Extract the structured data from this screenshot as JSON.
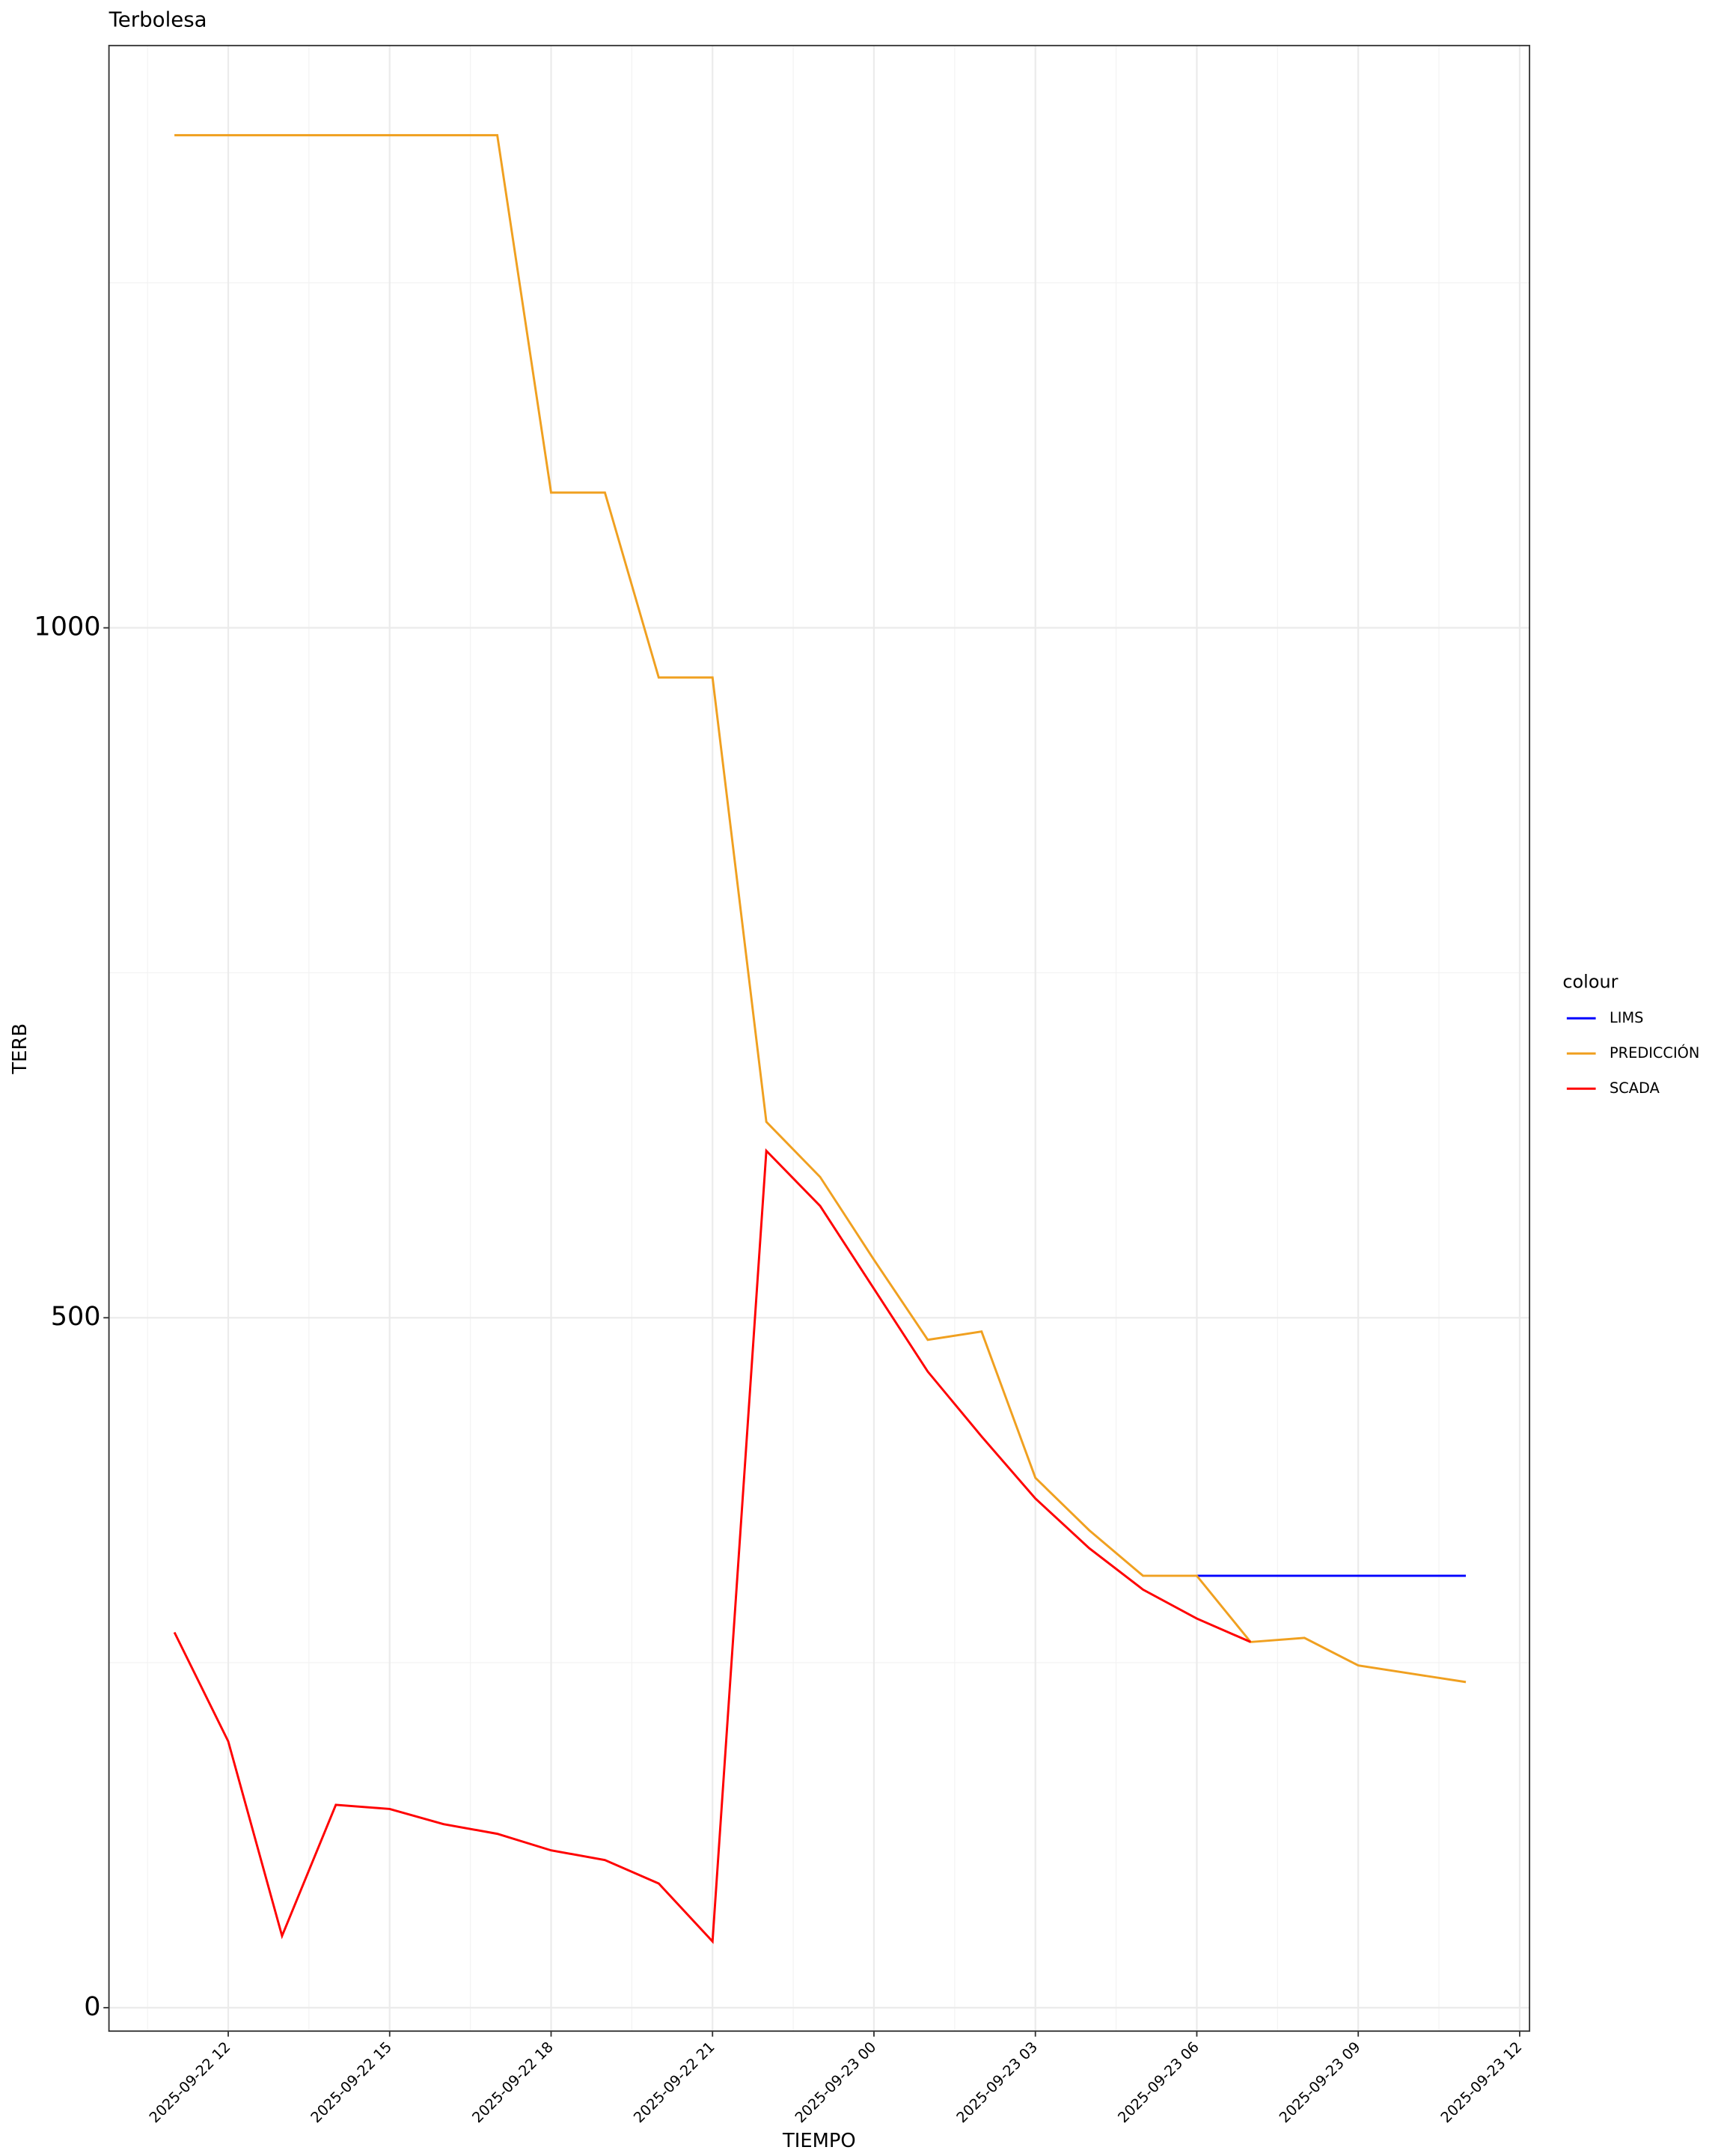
{
  "chart_data": {
    "type": "line",
    "title": "Terbolesa",
    "x_label": "TIEMPO",
    "y_label": "TERB",
    "x": [
      "2025-09-22 11",
      "2025-09-22 12",
      "2025-09-22 13",
      "2025-09-22 14",
      "2025-09-22 15",
      "2025-09-22 16",
      "2025-09-22 17",
      "2025-09-22 18",
      "2025-09-22 19",
      "2025-09-22 20",
      "2025-09-22 21",
      "2025-09-22 22",
      "2025-09-22 23",
      "2025-09-23 00",
      "2025-09-23 01",
      "2025-09-23 02",
      "2025-09-23 03",
      "2025-09-23 04",
      "2025-09-23 05",
      "2025-09-23 06",
      "2025-09-23 07",
      "2025-09-23 08",
      "2025-09-23 09",
      "2025-09-23 10",
      "2025-09-23 11"
    ],
    "series": [
      {
        "name": "LIMS",
        "color": "#0000ff",
        "values": [
          null,
          null,
          null,
          null,
          null,
          null,
          null,
          null,
          null,
          null,
          null,
          null,
          null,
          null,
          null,
          null,
          null,
          null,
          null,
          313,
          313,
          313,
          313,
          313,
          313
        ]
      },
      {
        "name": "PREDICCIÓN",
        "color": "#f0a020",
        "values": [
          1357,
          1357,
          1357,
          1357,
          1357,
          1357,
          1357,
          1098,
          1098,
          964,
          964,
          642,
          602,
          542,
          484,
          490,
          384,
          346,
          313,
          313,
          265,
          268,
          248,
          242,
          236
        ]
      },
      {
        "name": "SCADA",
        "color": "#ff0000",
        "values": [
          272,
          193,
          52,
          147,
          144,
          133,
          126,
          114,
          107,
          90,
          48,
          621,
          581,
          521,
          461,
          414,
          369,
          333,
          303,
          282,
          265,
          null,
          null,
          null,
          null
        ]
      }
    ],
    "legend_title": "colour",
    "xlim": [
      "2025-09-22 09:47",
      "2025-09-23 12:11"
    ],
    "xticks": [
      "2025-09-22 12",
      "2025-09-22 15",
      "2025-09-22 18",
      "2025-09-22 21",
      "2025-09-23 00",
      "2025-09-23 03",
      "2025-09-23 06",
      "2025-09-23 09",
      "2025-09-23 12"
    ],
    "ylim": [
      -17,
      1422
    ],
    "yticks": [
      0,
      500,
      1000
    ],
    "grid": true,
    "legend": "right"
  }
}
